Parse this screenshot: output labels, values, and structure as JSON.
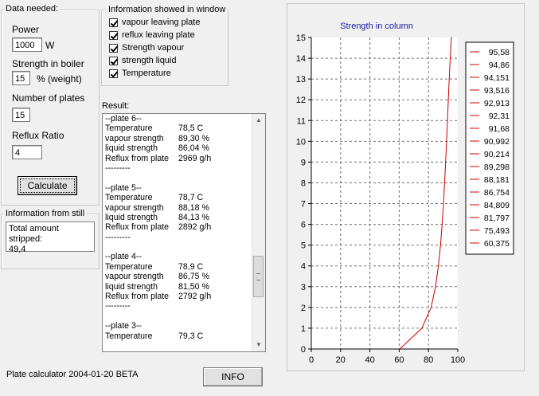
{
  "data_needed": {
    "group_title": "Data needed:",
    "power_label": "Power",
    "power_value": "1000",
    "power_unit": "W",
    "strength_label": "Strength in  boiler",
    "strength_value": "15",
    "strength_unit": "% (weight)",
    "plates_label": "Number of plates",
    "plates_value": "15",
    "reflux_label": "Reflux Ratio",
    "reflux_value": "4",
    "calculate_label": "Calculate"
  },
  "info_window": {
    "group_title": "Information showed in window",
    "options": [
      {
        "label": "vapour leaving plate",
        "checked": true
      },
      {
        "label": "reflux leaving plate",
        "checked": true
      },
      {
        "label": "Strength vapour",
        "checked": true
      },
      {
        "label": "strength liquid",
        "checked": true
      },
      {
        "label": "Temperature",
        "checked": true
      }
    ]
  },
  "still": {
    "group_title": "Information from still",
    "text_line1": "Total amount stripped:",
    "text_line2": "49,4"
  },
  "results": {
    "label": "Result:",
    "lines": [
      [
        "--plate 6--",
        ""
      ],
      [
        "Temperature",
        "78,5  C"
      ],
      [
        "vapour strength",
        "89,30 %"
      ],
      [
        "liquid strength",
        "86,04 %"
      ],
      [
        "Reflux from plate",
        "2969 g/h"
      ],
      [
        "---------",
        ""
      ],
      [
        "",
        ""
      ],
      [
        "--plate 5--",
        ""
      ],
      [
        "Temperature",
        "78,7  C"
      ],
      [
        "vapour strength",
        "88,18 %"
      ],
      [
        "liquid strength",
        "84,13 %"
      ],
      [
        "Reflux from plate",
        "2892 g/h"
      ],
      [
        "---------",
        ""
      ],
      [
        "",
        ""
      ],
      [
        "--plate 4--",
        ""
      ],
      [
        "Temperature",
        "78,9  C"
      ],
      [
        "vapour strength",
        "86,75 %"
      ],
      [
        "liquid strength",
        "81,50 %"
      ],
      [
        "Reflux from plate",
        "2792 g/h"
      ],
      [
        "---------",
        ""
      ],
      [
        "",
        ""
      ],
      [
        "--plate 3--",
        ""
      ],
      [
        "Temperature",
        "79,3  C"
      ]
    ]
  },
  "footer": {
    "version_text": "Plate calculator 2004-01-20 BETA",
    "info_label": "INFO"
  },
  "icons": {
    "scroll_up": "triangle-up-icon",
    "scroll_down": "triangle-down-icon"
  },
  "chart_data": {
    "type": "line",
    "title": "Strength in column",
    "xlabel": "",
    "ylabel": "",
    "xlim": [
      0,
      100
    ],
    "ylim": [
      0,
      15
    ],
    "x_ticks": [
      0,
      20,
      40,
      60,
      80,
      100
    ],
    "y_ticks": [
      0,
      1,
      2,
      3,
      4,
      5,
      6,
      7,
      8,
      9,
      10,
      11,
      12,
      13,
      14,
      15
    ],
    "grid": true,
    "legend_position": "right",
    "series_color": "#cc0000",
    "x": [
      60.375,
      75.493,
      81.797,
      84.809,
      86.754,
      88.181,
      89.298,
      90.214,
      90.992,
      91.68,
      92.31,
      92.913,
      93.516,
      94.151,
      94.86,
      95.58
    ],
    "y": [
      0,
      1,
      2,
      3,
      4,
      5,
      6,
      7,
      8,
      9,
      10,
      11,
      12,
      13,
      14,
      15
    ],
    "legend_entries": [
      "95,58",
      "94,86",
      "94,151",
      "93,516",
      "92,913",
      "92,31",
      "91,68",
      "90,992",
      "90,214",
      "89,298",
      "88,181",
      "86,754",
      "84,809",
      "81,797",
      "75,493",
      "60,375"
    ]
  }
}
